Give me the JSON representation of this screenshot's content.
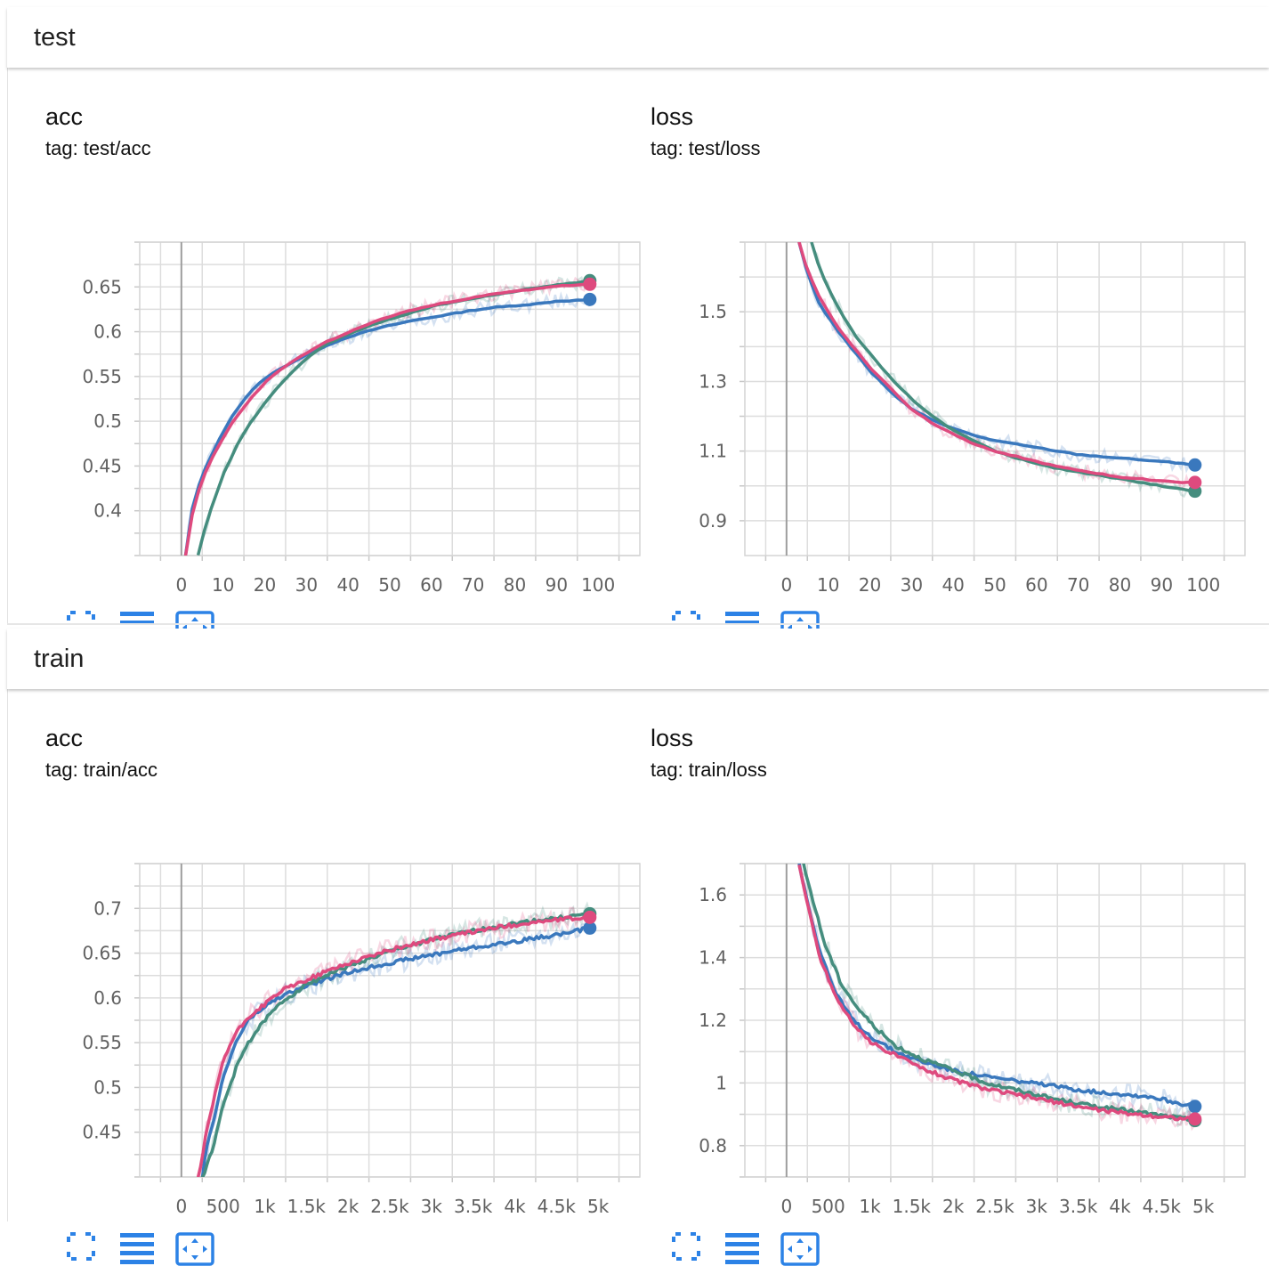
{
  "groups": [
    {
      "title": "test",
      "cards": [
        {
          "title": "acc",
          "tag": "tag: test/acc",
          "chart_data": {
            "type": "line",
            "title": "acc",
            "xlim": [
              -10,
              110
            ],
            "ylim": [
              0.35,
              0.7
            ],
            "xticks": [
              0,
              10,
              20,
              30,
              40,
              50,
              60,
              70,
              80,
              90,
              100
            ],
            "xtick_labels": [
              "0",
              "10",
              "20",
              "30",
              "40",
              "50",
              "60",
              "70",
              "80",
              "90",
              "100"
            ],
            "yticks": [
              0.4,
              0.45,
              0.5,
              0.55,
              0.6,
              0.65
            ],
            "ytick_labels": [
              "0.4",
              "0.45",
              "0.5",
              "0.55",
              "0.6",
              "0.65"
            ],
            "grid": true,
            "series": [
              {
                "color": "#3a78bd",
                "x": [
                  1,
                  2,
                  3,
                  5,
                  8,
                  12,
                  16,
                  20,
                  25,
                  30,
                  35,
                  40,
                  45,
                  50,
                  55,
                  60,
                  65,
                  70,
                  75,
                  80,
                  85,
                  90,
                  95,
                  98
                ],
                "y": [
                  0.35,
                  0.39,
                  0.41,
                  0.44,
                  0.47,
                  0.505,
                  0.53,
                  0.548,
                  0.562,
                  0.574,
                  0.585,
                  0.594,
                  0.601,
                  0.607,
                  0.612,
                  0.616,
                  0.62,
                  0.624,
                  0.627,
                  0.629,
                  0.631,
                  0.634,
                  0.635,
                  0.636
                ]
              },
              {
                "color": "#458d7e",
                "x": [
                  4,
                  5,
                  7,
                  10,
                  13,
                  16,
                  20,
                  25,
                  30,
                  35,
                  40,
                  45,
                  50,
                  55,
                  60,
                  65,
                  70,
                  75,
                  80,
                  85,
                  90,
                  95,
                  98
                ],
                "y": [
                  0.35,
                  0.37,
                  0.4,
                  0.44,
                  0.47,
                  0.495,
                  0.52,
                  0.548,
                  0.57,
                  0.587,
                  0.597,
                  0.606,
                  0.614,
                  0.621,
                  0.628,
                  0.633,
                  0.637,
                  0.641,
                  0.645,
                  0.649,
                  0.652,
                  0.655,
                  0.657
                ]
              },
              {
                "color": "#de4a7e",
                "x": [
                  1,
                  2,
                  3,
                  5,
                  8,
                  12,
                  16,
                  20,
                  25,
                  30,
                  35,
                  40,
                  45,
                  50,
                  55,
                  60,
                  65,
                  70,
                  75,
                  80,
                  85,
                  90,
                  95,
                  98
                ],
                "y": [
                  0.35,
                  0.38,
                  0.405,
                  0.435,
                  0.465,
                  0.497,
                  0.522,
                  0.543,
                  0.562,
                  0.576,
                  0.589,
                  0.599,
                  0.609,
                  0.617,
                  0.624,
                  0.629,
                  0.634,
                  0.638,
                  0.642,
                  0.645,
                  0.648,
                  0.651,
                  0.652,
                  0.653
                ]
              }
            ]
          }
        },
        {
          "title": "loss",
          "tag": "tag: test/loss",
          "chart_data": {
            "type": "line",
            "title": "loss",
            "xlim": [
              -10,
              110
            ],
            "ylim": [
              0.8,
              1.7
            ],
            "xticks": [
              0,
              10,
              20,
              30,
              40,
              50,
              60,
              70,
              80,
              90,
              100
            ],
            "xtick_labels": [
              "0",
              "10",
              "20",
              "30",
              "40",
              "50",
              "60",
              "70",
              "80",
              "90",
              "100"
            ],
            "yticks": [
              0.9,
              1.1,
              1.3,
              1.5
            ],
            "ytick_labels": [
              "0.9",
              "1.1",
              "1.3",
              "1.5"
            ],
            "grid": true,
            "series": [
              {
                "color": "#3a78bd",
                "x": [
                  3,
                  5,
                  8,
                  12,
                  16,
                  20,
                  25,
                  30,
                  35,
                  40,
                  45,
                  50,
                  55,
                  60,
                  65,
                  70,
                  75,
                  80,
                  85,
                  90,
                  95,
                  98
                ],
                "y": [
                  1.7,
                  1.61,
                  1.52,
                  1.45,
                  1.39,
                  1.33,
                  1.27,
                  1.22,
                  1.19,
                  1.165,
                  1.145,
                  1.13,
                  1.12,
                  1.11,
                  1.1,
                  1.09,
                  1.085,
                  1.08,
                  1.075,
                  1.07,
                  1.065,
                  1.06
                ]
              },
              {
                "color": "#458d7e",
                "x": [
                  6,
                  8,
                  12,
                  16,
                  20,
                  25,
                  30,
                  35,
                  40,
                  45,
                  50,
                  55,
                  60,
                  65,
                  70,
                  75,
                  80,
                  85,
                  90,
                  95,
                  98
                ],
                "y": [
                  1.7,
                  1.62,
                  1.52,
                  1.44,
                  1.38,
                  1.31,
                  1.25,
                  1.2,
                  1.16,
                  1.13,
                  1.1,
                  1.08,
                  1.065,
                  1.05,
                  1.04,
                  1.03,
                  1.02,
                  1.01,
                  1.0,
                  0.99,
                  0.985
                ]
              },
              {
                "color": "#de4a7e",
                "x": [
                  3,
                  5,
                  8,
                  12,
                  16,
                  20,
                  25,
                  30,
                  35,
                  40,
                  45,
                  50,
                  55,
                  60,
                  65,
                  70,
                  75,
                  80,
                  85,
                  90,
                  95,
                  98
                ],
                "y": [
                  1.7,
                  1.62,
                  1.54,
                  1.46,
                  1.4,
                  1.34,
                  1.28,
                  1.22,
                  1.18,
                  1.15,
                  1.12,
                  1.1,
                  1.085,
                  1.07,
                  1.055,
                  1.045,
                  1.035,
                  1.025,
                  1.02,
                  1.015,
                  1.01,
                  1.01
                ]
              }
            ]
          }
        }
      ]
    },
    {
      "title": "train",
      "cards": [
        {
          "title": "acc",
          "tag": "tag: train/acc",
          "chart_data": {
            "type": "line",
            "title": "acc",
            "xlim": [
              -500,
              5500
            ],
            "ylim": [
              0.4,
              0.75
            ],
            "xticks": [
              0,
              500,
              1000,
              1500,
              2000,
              2500,
              3000,
              3500,
              4000,
              4500,
              5000
            ],
            "xtick_labels": [
              "0",
              "500",
              "1k",
              "1.5k",
              "2k",
              "2.5k",
              "3k",
              "3.5k",
              "4k",
              "4.5k",
              "5k"
            ],
            "yticks": [
              0.45,
              0.5,
              0.55,
              0.6,
              0.65,
              0.7
            ],
            "ytick_labels": [
              "0.45",
              "0.5",
              "0.55",
              "0.6",
              "0.65",
              "0.7"
            ],
            "grid": true,
            "series": [
              {
                "color": "#3a78bd",
                "x": [
                  250,
                  300,
                  400,
                  500,
                  650,
                  800,
                  1000,
                  1200,
                  1500,
                  1800,
                  2200,
                  2600,
                  3000,
                  3400,
                  3800,
                  4200,
                  4600,
                  4900
                ],
                "y": [
                  0.4,
                  0.43,
                  0.47,
                  0.51,
                  0.55,
                  0.575,
                  0.59,
                  0.602,
                  0.613,
                  0.623,
                  0.633,
                  0.641,
                  0.648,
                  0.655,
                  0.66,
                  0.666,
                  0.672,
                  0.678
                ]
              },
              {
                "color": "#458d7e",
                "x": [
                  250,
                  300,
                  400,
                  500,
                  650,
                  800,
                  1000,
                  1200,
                  1500,
                  1800,
                  2200,
                  2600,
                  3000,
                  3400,
                  3800,
                  4200,
                  4600,
                  4900
                ],
                "y": [
                  0.4,
                  0.41,
                  0.44,
                  0.48,
                  0.52,
                  0.55,
                  0.575,
                  0.595,
                  0.615,
                  0.628,
                  0.642,
                  0.655,
                  0.665,
                  0.673,
                  0.68,
                  0.686,
                  0.69,
                  0.694
                ]
              },
              {
                "color": "#de4a7e",
                "x": [
                  200,
                  250,
                  300,
                  400,
                  500,
                  650,
                  800,
                  1000,
                  1200,
                  1500,
                  1800,
                  2200,
                  2600,
                  3000,
                  3400,
                  3800,
                  4200,
                  4600,
                  4900
                ],
                "y": [
                  0.4,
                  0.42,
                  0.45,
                  0.49,
                  0.53,
                  0.56,
                  0.578,
                  0.593,
                  0.608,
                  0.62,
                  0.632,
                  0.645,
                  0.656,
                  0.665,
                  0.672,
                  0.679,
                  0.684,
                  0.688,
                  0.69
                ]
              }
            ]
          }
        },
        {
          "title": "loss",
          "tag": "tag: train/loss",
          "chart_data": {
            "type": "line",
            "title": "loss",
            "xlim": [
              -500,
              5500
            ],
            "ylim": [
              0.7,
              1.7
            ],
            "xticks": [
              0,
              500,
              1000,
              1500,
              2000,
              2500,
              3000,
              3500,
              4000,
              4500,
              5000
            ],
            "xtick_labels": [
              "0",
              "500",
              "1k",
              "1.5k",
              "2k",
              "2.5k",
              "3k",
              "3.5k",
              "4k",
              "4.5k",
              "5k"
            ],
            "yticks": [
              0.8,
              1.0,
              1.2,
              1.4,
              1.6
            ],
            "ytick_labels": [
              "0.8",
              "1",
              "1.2",
              "1.4",
              "1.6"
            ],
            "grid": true,
            "series": [
              {
                "color": "#3a78bd",
                "x": [
                  150,
                  250,
                  400,
                  600,
                  800,
                  1000,
                  1300,
                  1600,
                  2000,
                  2400,
                  2800,
                  3200,
                  3600,
                  4000,
                  4400,
                  4800,
                  4900
                ],
                "y": [
                  1.7,
                  1.58,
                  1.42,
                  1.28,
                  1.2,
                  1.15,
                  1.1,
                  1.07,
                  1.04,
                  1.02,
                  1.005,
                  0.99,
                  0.975,
                  0.965,
                  0.955,
                  0.93,
                  0.925
                ]
              },
              {
                "color": "#458d7e",
                "x": [
                  200,
                  300,
                  450,
                  650,
                  850,
                  1050,
                  1300,
                  1600,
                  2000,
                  2400,
                  2800,
                  3200,
                  3600,
                  4000,
                  4400,
                  4800,
                  4900
                ],
                "y": [
                  1.7,
                  1.6,
                  1.45,
                  1.32,
                  1.24,
                  1.18,
                  1.12,
                  1.08,
                  1.04,
                  1.0,
                  0.975,
                  0.95,
                  0.93,
                  0.915,
                  0.9,
                  0.885,
                  0.88
                ]
              },
              {
                "color": "#de4a7e",
                "x": [
                  150,
                  250,
                  400,
                  600,
                  800,
                  1000,
                  1300,
                  1600,
                  2000,
                  2400,
                  2800,
                  3200,
                  3600,
                  4000,
                  4400,
                  4800,
                  4900
                ],
                "y": [
                  1.7,
                  1.57,
                  1.4,
                  1.27,
                  1.19,
                  1.13,
                  1.09,
                  1.05,
                  1.01,
                  0.98,
                  0.96,
                  0.94,
                  0.92,
                  0.905,
                  0.895,
                  0.885,
                  0.885
                ]
              }
            ]
          }
        }
      ]
    }
  ],
  "toolbar": {
    "icons": [
      "fullscreen-icon",
      "log-scale-icon",
      "fit-domain-icon"
    ],
    "accent_color": "#2c82e6"
  },
  "colors": {
    "series_blue": "#3a78bd",
    "series_green": "#458d7e",
    "series_pink": "#de4a7e",
    "grid": "#dddddd",
    "axis_zero": "#9e9e9e"
  }
}
